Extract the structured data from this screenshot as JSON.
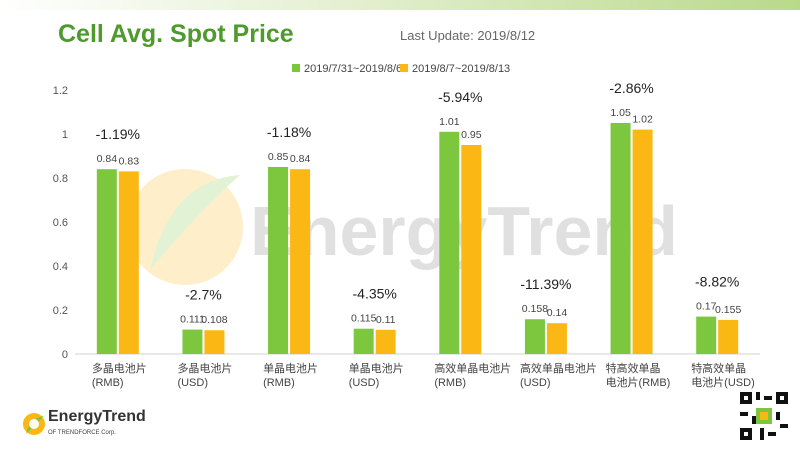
{
  "header": {
    "title": "Cell Avg. Spot Price",
    "last_update": "Last Update: 2019/8/12"
  },
  "watermark": {
    "text": "EnergyTrend"
  },
  "footer": {
    "logo_text": "EnergyTrend",
    "logo_sub": "OF TRENDFORCE Corp."
  },
  "colors": {
    "series1": "#7dc73e",
    "series2": "#fbb714",
    "title": "#4e9a2c"
  },
  "chart_data": {
    "type": "bar",
    "title": "Cell Avg. Spot Price",
    "ylim": [
      0,
      1.2
    ],
    "yticks": [
      0,
      0.2,
      0.4,
      0.6,
      0.8,
      1,
      1.2
    ],
    "ytick_labels": [
      "0",
      "0.2",
      "0.4",
      "0.6",
      "0.8",
      "1",
      "1.2"
    ],
    "legend_position": "top-center",
    "categories": [
      [
        "多晶电池片",
        "(RMB)"
      ],
      [
        "多晶电池片",
        "(USD)"
      ],
      [
        "单晶电池片",
        "(RMB)"
      ],
      [
        "单晶电池片",
        "(USD)"
      ],
      [
        "高效单晶电池片",
        "(RMB)"
      ],
      [
        "高效单晶电池片",
        "(USD)"
      ],
      [
        "特高效单晶",
        "电池片(RMB)"
      ],
      [
        "特高效单晶",
        "电池片(USD)"
      ]
    ],
    "series": [
      {
        "name": "2019/7/31~2019/8/6",
        "values": [
          0.84,
          0.111,
          0.85,
          0.115,
          1.01,
          0.158,
          1.05,
          0.17
        ],
        "labels": [
          "0.84",
          "0.111",
          "0.85",
          "0.115",
          "1.01",
          "0.158",
          "1.05",
          "0.17"
        ]
      },
      {
        "name": "2019/8/7~2019/8/13",
        "values": [
          0.83,
          0.108,
          0.84,
          0.11,
          0.95,
          0.14,
          1.02,
          0.155
        ],
        "labels": [
          "0.83",
          "0.108",
          "0.84",
          "0.11",
          "0.95",
          "0.14",
          "1.02",
          "0.155"
        ]
      }
    ],
    "changes": [
      "-1.19%",
      "-2.7%",
      "-1.18%",
      "-4.35%",
      "-5.94%",
      "-11.39%",
      "-2.86%",
      "-8.82%"
    ]
  }
}
